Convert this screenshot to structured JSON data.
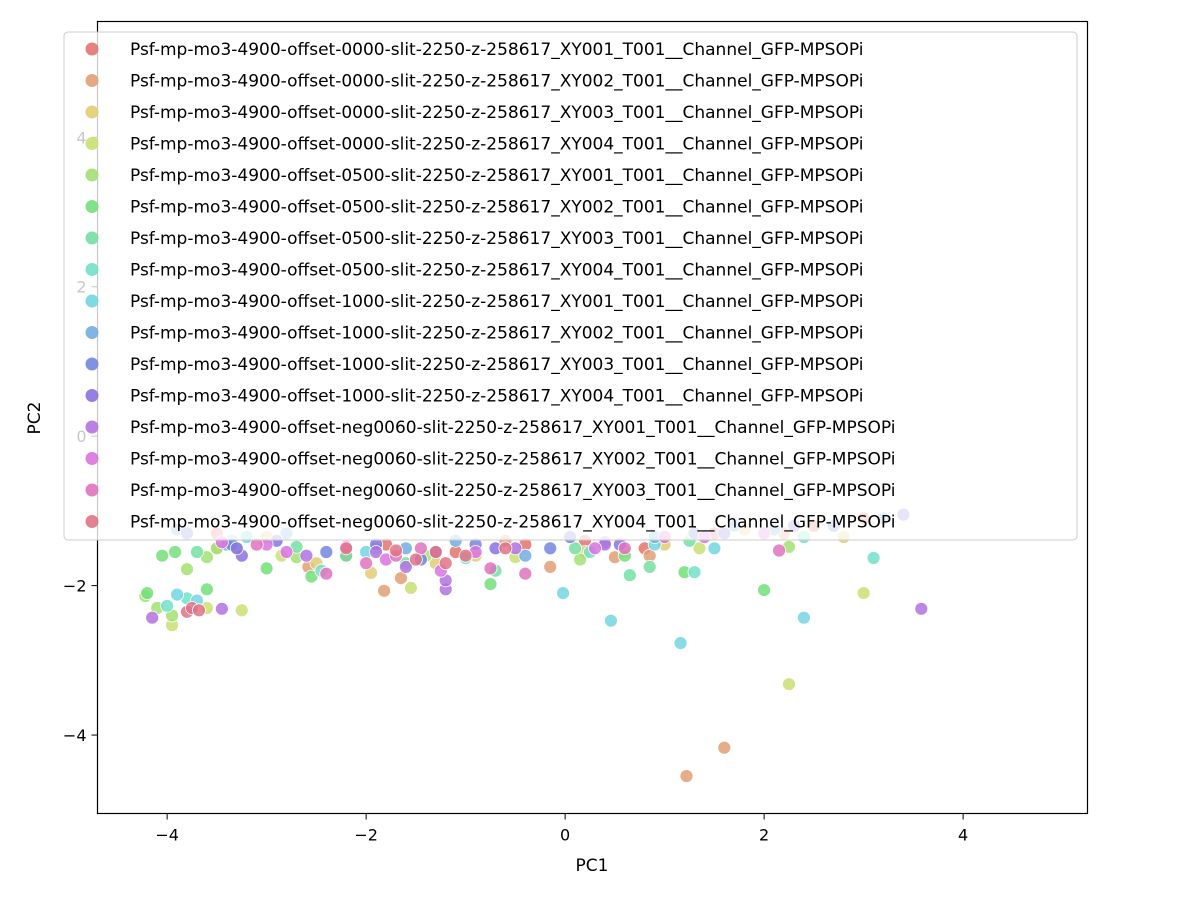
{
  "chart_data": {
    "type": "scatter",
    "xlabel": "PC1",
    "ylabel": "PC2",
    "xlim": [
      -4.7,
      5.25
    ],
    "ylim": [
      -5.05,
      5.55
    ],
    "xticks": [
      -4,
      -2,
      0,
      2,
      4
    ],
    "yticks": [
      -4,
      -2,
      0,
      2,
      4
    ],
    "legend_position": "upper center",
    "series": [
      {
        "name": "Psf-mp-mo3-4900-offset-0000-slit-2250-z-258617_XY001_T001__Channel_GFP-MPSOPi",
        "color": "#e3736d",
        "points": [
          [
            -2.2,
            -1.6
          ],
          [
            -1.1,
            -1.55
          ],
          [
            0.2,
            -1.4
          ],
          [
            1.5,
            -1.3
          ],
          [
            2.5,
            -1.2
          ],
          [
            -3.5,
            -1.3
          ],
          [
            -0.4,
            -1.45
          ],
          [
            3.0,
            -1.1
          ],
          [
            0.8,
            -1.5
          ],
          [
            -1.8,
            -1.45
          ]
        ]
      },
      {
        "name": "Psf-mp-mo3-4900-offset-0000-slit-2250-z-258617_XY002_T001__Channel_GFP-MPSOPi",
        "color": "#e19f74",
        "points": [
          [
            1.6,
            -4.17
          ],
          [
            1.22,
            -4.55
          ],
          [
            -1.82,
            -2.07
          ],
          [
            -2.58,
            -1.75
          ],
          [
            -0.15,
            -1.75
          ],
          [
            0.85,
            -1.6
          ],
          [
            0.5,
            -1.62
          ],
          [
            -1.65,
            -1.9
          ],
          [
            2.2,
            -1.3
          ],
          [
            -0.6,
            -1.4
          ]
        ]
      },
      {
        "name": "Psf-mp-mo3-4900-offset-0000-slit-2250-z-258617_XY003_T001__Channel_GFP-MPSOPi",
        "color": "#e0cd74",
        "points": [
          [
            -1.95,
            -1.83
          ],
          [
            -1.3,
            -1.7
          ],
          [
            -2.5,
            -1.7
          ],
          [
            -3.5,
            -1.5
          ],
          [
            0.2,
            -1.55
          ],
          [
            1.0,
            -1.45
          ],
          [
            -0.9,
            -1.6
          ],
          [
            2.8,
            -1.35
          ],
          [
            -3.0,
            -1.35
          ],
          [
            1.8,
            -1.25
          ]
        ]
      },
      {
        "name": "Psf-mp-mo3-4900-offset-0000-slit-2250-z-258617_XY004_T001__Channel_GFP-MPSOPi",
        "color": "#c9e073",
        "points": [
          [
            2.25,
            -3.32
          ],
          [
            -3.25,
            -2.33
          ],
          [
            -3.95,
            -2.53
          ],
          [
            -3.6,
            -2.3
          ],
          [
            -1.55,
            -2.03
          ],
          [
            1.35,
            -1.5
          ],
          [
            -0.5,
            -1.62
          ],
          [
            3.0,
            -2.1
          ],
          [
            -2.85,
            -1.6
          ],
          [
            0.6,
            -1.55
          ]
        ]
      },
      {
        "name": "Psf-mp-mo3-4900-offset-0500-slit-2250-z-258617_XY001_T001__Channel_GFP-MPSOPi",
        "color": "#a2e073",
        "points": [
          [
            -4.22,
            -2.14
          ],
          [
            -4.1,
            -2.3
          ],
          [
            -3.8,
            -1.78
          ],
          [
            -3.95,
            -2.4
          ],
          [
            -3.6,
            -1.62
          ],
          [
            -3.5,
            -1.5
          ],
          [
            -2.7,
            -1.62
          ],
          [
            0.15,
            -1.65
          ],
          [
            2.25,
            -1.48
          ],
          [
            -1.4,
            -1.6
          ]
        ]
      },
      {
        "name": "Psf-mp-mo3-4900-offset-0500-slit-2250-z-258617_XY002_T001__Channel_GFP-MPSOPi",
        "color": "#73e07a",
        "points": [
          [
            -4.2,
            -2.1
          ],
          [
            -3.92,
            -1.55
          ],
          [
            -4.05,
            -1.6
          ],
          [
            -3.6,
            -2.05
          ],
          [
            -2.55,
            -1.88
          ],
          [
            -0.75,
            -1.98
          ],
          [
            0.6,
            -1.6
          ],
          [
            2.0,
            -2.06
          ],
          [
            -3.0,
            -1.77
          ],
          [
            1.2,
            -1.82
          ]
        ]
      },
      {
        "name": "Psf-mp-mo3-4900-offset-0500-slit-2250-z-258617_XY003_T001__Channel_GFP-MPSOPi",
        "color": "#73e0a1",
        "points": [
          [
            -3.7,
            -1.55
          ],
          [
            -2.7,
            -1.48
          ],
          [
            -0.7,
            -1.8
          ],
          [
            0.85,
            -1.75
          ],
          [
            0.65,
            -1.86
          ],
          [
            -1.6,
            -1.7
          ],
          [
            -3.3,
            -1.5
          ],
          [
            1.25,
            -1.4
          ],
          [
            -2.2,
            -1.6
          ],
          [
            0.1,
            -1.5
          ]
        ]
      },
      {
        "name": "Psf-mp-mo3-4900-offset-0500-slit-2250-z-258617_XY004_T001__Channel_GFP-MPSOPi",
        "color": "#73e0c9",
        "points": [
          [
            -4.0,
            -2.27
          ],
          [
            -3.8,
            -2.17
          ],
          [
            1.3,
            -1.82
          ],
          [
            3.1,
            -1.63
          ],
          [
            -1.0,
            -1.63
          ],
          [
            -2.45,
            -1.8
          ],
          [
            0.25,
            -1.55
          ],
          [
            -3.35,
            -1.4
          ],
          [
            2.4,
            -1.35
          ],
          [
            -1.9,
            -1.5
          ]
        ]
      },
      {
        "name": "Psf-mp-mo3-4900-offset-1000-slit-2250-z-258617_XY001_T001__Channel_GFP-MPSOPi",
        "color": "#73d6e0",
        "points": [
          [
            1.16,
            -2.77
          ],
          [
            2.4,
            -2.43
          ],
          [
            0.46,
            -2.47
          ],
          [
            -0.02,
            -2.1
          ],
          [
            -3.9,
            -2.12
          ],
          [
            -3.7,
            -2.2
          ],
          [
            1.5,
            -1.5
          ],
          [
            -2.0,
            -1.55
          ],
          [
            0.9,
            -1.45
          ],
          [
            -3.2,
            -1.35
          ]
        ]
      },
      {
        "name": "Psf-mp-mo3-4900-offset-1000-slit-2250-z-258617_XY002_T001__Channel_GFP-MPSOPi",
        "color": "#73aee0",
        "points": [
          [
            -3.4,
            -1.45
          ],
          [
            -1.6,
            -1.5
          ],
          [
            -0.4,
            -1.6
          ],
          [
            0.9,
            -1.35
          ],
          [
            2.1,
            -1.25
          ],
          [
            -2.8,
            -1.3
          ],
          [
            1.7,
            -1.2
          ],
          [
            -1.1,
            -1.4
          ],
          [
            3.2,
            -1.1
          ],
          [
            -3.9,
            -1.25
          ]
        ]
      },
      {
        "name": "Psf-mp-mo3-4900-offset-1000-slit-2250-z-258617_XY003_T001__Channel_GFP-MPSOPi",
        "color": "#7386e0",
        "points": [
          [
            -0.15,
            -1.5
          ],
          [
            -1.45,
            -1.65
          ],
          [
            -3.35,
            -1.45
          ],
          [
            0.4,
            -1.42
          ],
          [
            -2.4,
            -1.55
          ],
          [
            1.3,
            -1.3
          ],
          [
            -0.9,
            -1.45
          ],
          [
            2.7,
            -1.2
          ],
          [
            -3.8,
            -1.3
          ],
          [
            0.05,
            -1.35
          ]
        ]
      },
      {
        "name": "Psf-mp-mo3-4900-offset-1000-slit-2250-z-258617_XY004_T001__Channel_GFP-MPSOPi",
        "color": "#8a73e0",
        "points": [
          [
            -3.25,
            -1.6
          ],
          [
            -3.3,
            -1.5
          ],
          [
            -1.9,
            -1.45
          ],
          [
            -0.7,
            -1.5
          ],
          [
            0.55,
            -1.45
          ],
          [
            -2.9,
            -1.4
          ],
          [
            1.6,
            -1.3
          ],
          [
            3.4,
            -1.05
          ],
          [
            -1.3,
            -1.55
          ],
          [
            2.3,
            -1.2
          ]
        ]
      },
      {
        "name": "Psf-mp-mo3-4900-offset-neg0060-slit-2250-z-258617_XY001_T001__Channel_GFP-MPSOPi",
        "color": "#b273e0",
        "points": [
          [
            3.58,
            -2.31
          ],
          [
            -3.45,
            -2.31
          ],
          [
            -4.15,
            -2.43
          ],
          [
            -1.2,
            -2.05
          ],
          [
            -1.2,
            -1.93
          ],
          [
            -1.6,
            -1.75
          ],
          [
            -1.9,
            -1.55
          ],
          [
            -0.5,
            -1.5
          ],
          [
            0.4,
            -1.45
          ],
          [
            -2.6,
            -1.6
          ]
        ]
      },
      {
        "name": "Psf-mp-mo3-4900-offset-neg0060-slit-2250-z-258617_XY002_T001__Channel_GFP-MPSOPi",
        "color": "#db73e0",
        "points": [
          [
            -3.45,
            -1.42
          ],
          [
            -2.2,
            -1.48
          ],
          [
            -1.8,
            -1.65
          ],
          [
            -0.9,
            -1.55
          ],
          [
            0.3,
            -1.5
          ],
          [
            -3.0,
            -1.45
          ],
          [
            1.4,
            -1.35
          ],
          [
            -1.25,
            -1.8
          ],
          [
            2.0,
            -1.3
          ],
          [
            -2.8,
            -1.55
          ]
        ]
      },
      {
        "name": "Psf-mp-mo3-4900-offset-neg0060-slit-2250-z-258617_XY003_T001__Channel_GFP-MPSOPi",
        "color": "#e073be",
        "points": [
          [
            -2.4,
            -1.84
          ],
          [
            -1.7,
            -1.6
          ],
          [
            -0.4,
            -1.84
          ],
          [
            -0.75,
            -1.77
          ],
          [
            2.15,
            -1.53
          ],
          [
            -3.1,
            -1.45
          ],
          [
            0.6,
            -1.5
          ],
          [
            -2.0,
            -1.7
          ],
          [
            1.0,
            -1.35
          ],
          [
            -1.45,
            -1.5
          ]
        ]
      },
      {
        "name": "Psf-mp-mo3-4900-offset-neg0060-slit-2250-z-258617_XY004_T001__Channel_GFP-MPSOPi",
        "color": "#e07387",
        "points": [
          [
            -3.8,
            -2.35
          ],
          [
            -3.75,
            -2.3
          ],
          [
            -3.68,
            -2.33
          ],
          [
            -1.5,
            -1.65
          ],
          [
            -1.3,
            -1.55
          ],
          [
            -1.7,
            -1.53
          ],
          [
            -1.0,
            -1.6
          ],
          [
            -2.2,
            -1.5
          ],
          [
            -0.6,
            -1.5
          ],
          [
            -1.2,
            -1.7
          ]
        ]
      }
    ]
  }
}
